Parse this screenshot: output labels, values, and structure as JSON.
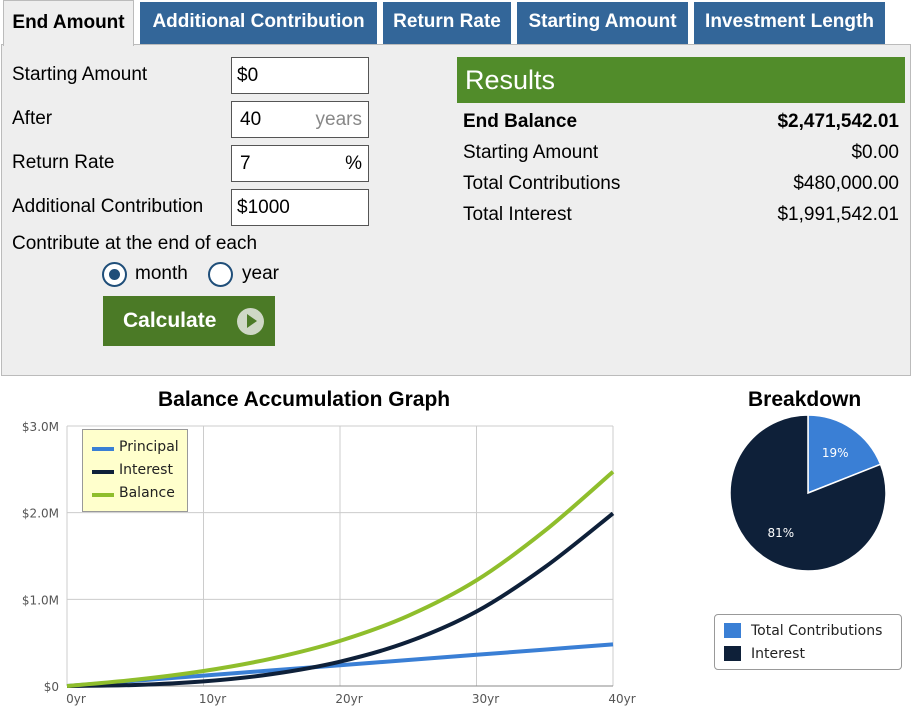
{
  "tabs": [
    {
      "label": "End Amount",
      "active": true
    },
    {
      "label": "Additional Contribution",
      "active": false
    },
    {
      "label": "Return Rate",
      "active": false
    },
    {
      "label": "Starting Amount",
      "active": false
    },
    {
      "label": "Investment Length",
      "active": false
    }
  ],
  "form": {
    "starting_amount_label": "Starting Amount",
    "starting_amount_value": "$0",
    "after_label": "After",
    "after_value": "40",
    "after_unit": "years",
    "return_rate_label": "Return Rate",
    "return_rate_value": "7",
    "return_rate_unit": "%",
    "additional_contribution_label": "Additional Contribution",
    "additional_contribution_value": "$1000",
    "contribute_label": "Contribute at the end of each",
    "option_month": "month",
    "option_year": "year",
    "selected_option": "month",
    "calculate_label": "Calculate"
  },
  "results": {
    "title": "Results",
    "rows": [
      {
        "label": "End Balance",
        "value": "$2,471,542.01"
      },
      {
        "label": "Starting Amount",
        "value": "$0.00"
      },
      {
        "label": "Total Contributions",
        "value": "$480,000.00"
      },
      {
        "label": "Total Interest",
        "value": "$1,991,542.01"
      }
    ]
  },
  "colors": {
    "tab_blue": "#336699",
    "results_green": "#518c2a",
    "button_green": "#4b7a26",
    "principal": "#3a7fd5",
    "interest": "#0e2039",
    "balance": "#8fbe2c"
  },
  "chart_data": [
    {
      "type": "line",
      "title": "Balance Accumulation Graph",
      "x": [
        0,
        5,
        10,
        15,
        20,
        25,
        30,
        35,
        40
      ],
      "x_tick_labels": [
        "0yr",
        "10yr",
        "20yr",
        "30yr",
        "40yr"
      ],
      "x_ticks": [
        0,
        10,
        20,
        30,
        40
      ],
      "y_tick_labels": [
        "$0",
        "$1.0M",
        "$2.0M",
        "$3.0M"
      ],
      "y_ticks": [
        0,
        1000000,
        2000000,
        3000000
      ],
      "xlim": [
        0,
        40
      ],
      "ylim": [
        0,
        3000000
      ],
      "grid": true,
      "legend_position": "top-left",
      "series": [
        {
          "name": "Principal",
          "values": [
            0,
            60000,
            120000,
            180000,
            240000,
            300000,
            360000,
            420000,
            480000
          ]
        },
        {
          "name": "Interest",
          "values": [
            0,
            12000,
            53000,
            137000,
            281000,
            510000,
            859000,
            1370000,
            1991542
          ]
        },
        {
          "name": "Balance",
          "values": [
            0,
            72000,
            173000,
            317000,
            521000,
            810000,
            1219000,
            1790000,
            2471542
          ]
        }
      ]
    },
    {
      "type": "pie",
      "title": "Breakdown",
      "legend_position": "bottom",
      "slices": [
        {
          "name": "Total Contributions",
          "value": 19,
          "label": "19%"
        },
        {
          "name": "Interest",
          "value": 81,
          "label": "81%"
        }
      ]
    }
  ]
}
